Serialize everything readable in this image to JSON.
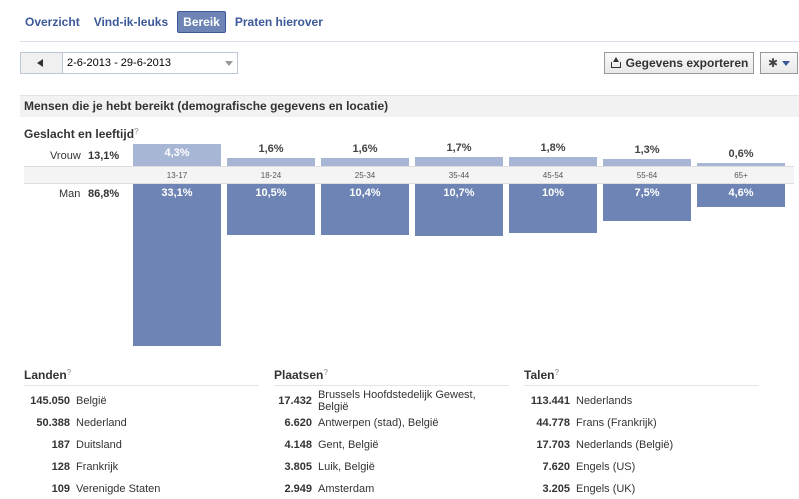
{
  "tabs": [
    {
      "label": "Overzicht",
      "active": false
    },
    {
      "label": "Vind-ik-leuks",
      "active": false
    },
    {
      "label": "Bereik",
      "active": true
    },
    {
      "label": "Praten hierover",
      "active": false
    }
  ],
  "toolbar": {
    "date_range": "2-6-2013 - 29-6-2013",
    "export_label": "Gegevens exporteren"
  },
  "section": {
    "title": "Mensen die je hebt bereikt (demografische gegevens en locatie)",
    "gender_age_title": "Geslacht en leeftijd"
  },
  "chart_data": {
    "type": "bar",
    "categories": [
      "13-17",
      "18-24",
      "25-34",
      "35-44",
      "45-54",
      "55-64",
      "65+"
    ],
    "series": [
      {
        "name": "Vrouw",
        "total": "13,1%",
        "values": [
          4.3,
          1.6,
          1.6,
          1.7,
          1.8,
          1.3,
          0.6
        ],
        "labels": [
          "4,3%",
          "1,6%",
          "1,6%",
          "1,7%",
          "1,8%",
          "1,3%",
          "0,6%"
        ]
      },
      {
        "name": "Man",
        "total": "86,8%",
        "values": [
          33.1,
          10.5,
          10.4,
          10.7,
          10,
          7.5,
          4.6
        ],
        "labels": [
          "33,1%",
          "10,5%",
          "10,4%",
          "10,7%",
          "10%",
          "7,5%",
          "4,6%"
        ]
      }
    ],
    "colors": {
      "female": "#a8b6d5",
      "male": "#6d84b4"
    }
  },
  "lists": {
    "countries": {
      "title": "Landen",
      "rows": [
        {
          "num": "145.050",
          "name": "België"
        },
        {
          "num": "50.388",
          "name": "Nederland"
        },
        {
          "num": "187",
          "name": "Duitsland"
        },
        {
          "num": "128",
          "name": "Frankrijk"
        },
        {
          "num": "109",
          "name": "Verenigde Staten"
        }
      ]
    },
    "cities": {
      "title": "Plaatsen",
      "rows": [
        {
          "num": "17.432",
          "name": "Brussels Hoofdstedelijk Gewest, België"
        },
        {
          "num": "6.620",
          "name": "Antwerpen (stad), België"
        },
        {
          "num": "4.148",
          "name": "Gent, België"
        },
        {
          "num": "3.805",
          "name": "Luik, België"
        },
        {
          "num": "2.949",
          "name": "Amsterdam"
        }
      ]
    },
    "languages": {
      "title": "Talen",
      "rows": [
        {
          "num": "113.441",
          "name": "Nederlands"
        },
        {
          "num": "44.778",
          "name": "Frans (Frankrijk)"
        },
        {
          "num": "17.703",
          "name": "Nederlands (België)"
        },
        {
          "num": "7.620",
          "name": "Engels (US)"
        },
        {
          "num": "3.205",
          "name": "Engels (UK)"
        }
      ]
    }
  }
}
